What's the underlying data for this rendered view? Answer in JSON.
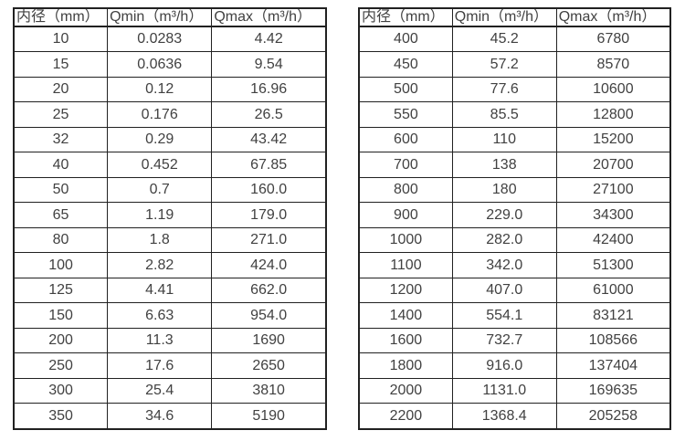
{
  "page": {
    "background_color": "#ffffff",
    "text_color": "#414141",
    "border_color": "#212121"
  },
  "tables": [
    {
      "id": "flow-range-table-small-diameters",
      "headers": [
        "内径（mm）",
        "Qmin（m³/h）",
        "Qmax（m³/h）"
      ],
      "rows": [
        [
          "10",
          "0.0283",
          "4.42"
        ],
        [
          "15",
          "0.0636",
          "9.54"
        ],
        [
          "20",
          "0.12",
          "16.96"
        ],
        [
          "25",
          "0.176",
          "26.5"
        ],
        [
          "32",
          "0.29",
          "43.42"
        ],
        [
          "40",
          "0.452",
          "67.85"
        ],
        [
          "50",
          "0.7",
          "160.0"
        ],
        [
          "65",
          "1.19",
          "179.0"
        ],
        [
          "80",
          "1.8",
          "271.0"
        ],
        [
          "100",
          "2.82",
          "424.0"
        ],
        [
          "125",
          "4.41",
          "662.0"
        ],
        [
          "150",
          "6.63",
          "954.0"
        ],
        [
          "200",
          "11.3",
          "1690"
        ],
        [
          "250",
          "17.6",
          "2650"
        ],
        [
          "300",
          "25.4",
          "3810"
        ],
        [
          "350",
          "34.6",
          "5190"
        ]
      ]
    },
    {
      "id": "flow-range-table-large-diameters",
      "headers": [
        "内径（mm）",
        "Qmin（m³/h）",
        "Qmax（m³/h）"
      ],
      "rows": [
        [
          "400",
          "45.2",
          "6780"
        ],
        [
          "450",
          "57.2",
          "8570"
        ],
        [
          "500",
          "77.6",
          "10600"
        ],
        [
          "550",
          "85.5",
          "12800"
        ],
        [
          "600",
          "110",
          "15200"
        ],
        [
          "700",
          "138",
          "20700"
        ],
        [
          "800",
          "180",
          "27100"
        ],
        [
          "900",
          "229.0",
          "34300"
        ],
        [
          "1000",
          "282.0",
          "42400"
        ],
        [
          "1100",
          "342.0",
          "51300"
        ],
        [
          "1200",
          "407.0",
          "61000"
        ],
        [
          "1400",
          "554.1",
          "83121"
        ],
        [
          "1600",
          "732.7",
          "108566"
        ],
        [
          "1800",
          "916.0",
          "137404"
        ],
        [
          "2000",
          "1131.0",
          "169635"
        ],
        [
          "2200",
          "1368.4",
          "205258"
        ]
      ]
    }
  ]
}
